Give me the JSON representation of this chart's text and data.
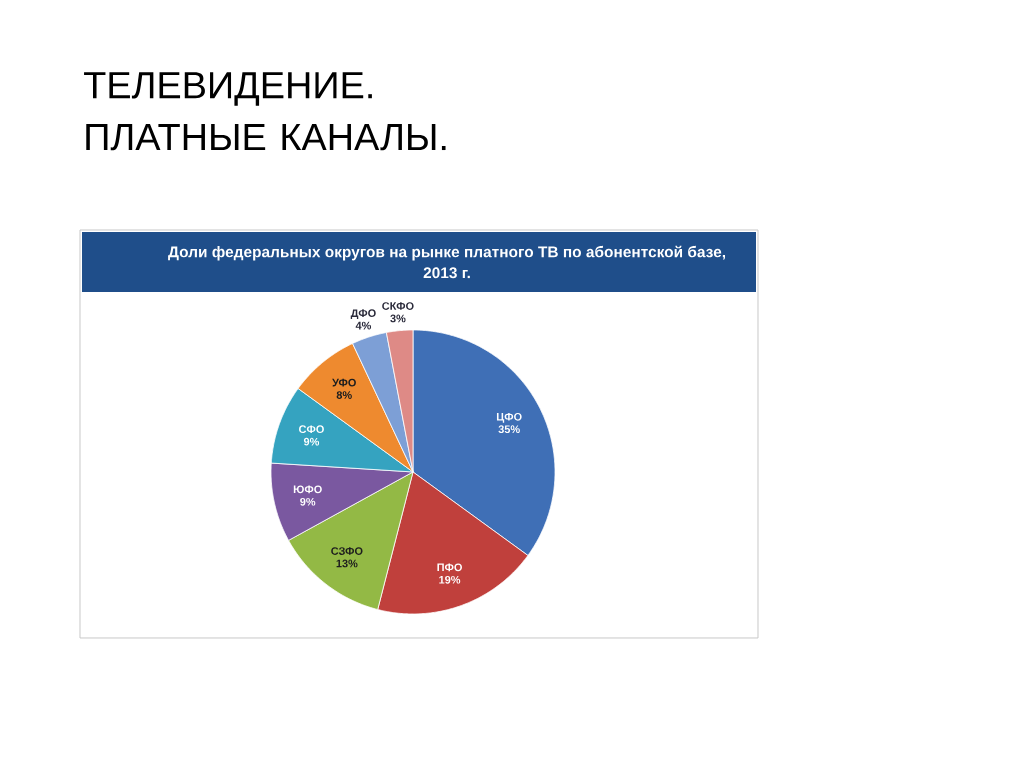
{
  "chart_data": {
    "type": "pie",
    "title": "ТЕЛЕВИДЕНИЕ. ПЛАТНЫЕ КАНАЛЫ.",
    "subtitle": "Доли федеральных округов на рынке платного ТВ по абонентской базе, 2013 г.",
    "categories": [
      "ЦФО",
      "ПФО",
      "СЗФО",
      "ЮФО",
      "СФО",
      "УФО",
      "ДФО",
      "СКФО"
    ],
    "values": [
      35,
      19,
      13,
      9,
      9,
      8,
      4,
      3
    ],
    "colors": [
      "#3f6fb6",
      "#c0403c",
      "#93b945",
      "#7a58a0",
      "#35a3c0",
      "#ee8a2f",
      "#7d9fd6",
      "#de8a86"
    ],
    "value_labels": [
      "35%",
      "19%",
      "13%",
      "9%",
      "9%",
      "8%",
      "4%",
      "3%"
    ]
  }
}
